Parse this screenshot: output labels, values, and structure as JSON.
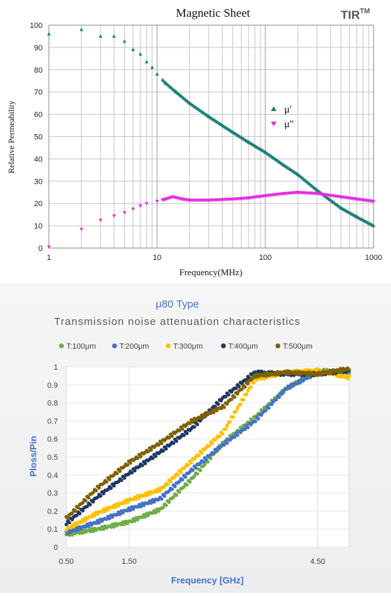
{
  "chart_data": [
    {
      "type": "scatter",
      "title": "Magnetic Sheet",
      "brand": "TIR",
      "brand_sup": "TM",
      "xlabel": "Frequency(MHz)",
      "ylabel": "Relative Permeability",
      "xscale": "log",
      "xlim": [
        1,
        1000
      ],
      "ylim": [
        0,
        100
      ],
      "x_ticks": [
        "1",
        "10",
        "100",
        "1000"
      ],
      "y_ticks": [
        "0",
        "10",
        "20",
        "30",
        "40",
        "50",
        "60",
        "70",
        "80",
        "90",
        "100"
      ],
      "grid": true,
      "legend_position": "right",
      "colors": {
        "mu_prime": "#1b7f79",
        "mu_dprime": "#e52ee5"
      },
      "series": [
        {
          "name": "μ'",
          "marker": "triangle-up",
          "x": [
            1,
            2,
            3,
            4,
            5,
            6,
            7,
            8,
            9,
            10,
            12,
            15,
            20,
            30,
            50,
            70,
            100,
            150,
            200,
            300,
            500,
            700,
            1000
          ],
          "y": [
            96,
            98,
            95,
            95,
            92.7,
            89,
            87,
            83.5,
            81,
            78,
            74,
            70,
            65,
            59,
            52,
            47.5,
            43,
            37,
            33,
            26,
            18,
            14,
            10
          ]
        },
        {
          "name": "μ''",
          "marker": "triangle-down",
          "x": [
            1,
            2,
            3,
            4,
            5,
            6,
            7,
            8,
            10,
            12,
            14,
            17,
            20,
            30,
            50,
            70,
            100,
            150,
            200,
            300,
            500,
            700,
            1000
          ],
          "y": [
            0.5,
            8.5,
            12.5,
            14.5,
            16,
            17.5,
            19,
            20,
            21,
            22,
            23,
            22,
            21.5,
            21.5,
            22,
            22.5,
            23.5,
            24.5,
            25,
            24.5,
            23,
            22,
            21
          ]
        }
      ]
    },
    {
      "type": "scatter",
      "title": "μ80 Type",
      "subtitle": "Transmission noise attenuation characteristics",
      "xlabel": "Frequency [GHz]",
      "ylabel": "Ploss/Pin",
      "xlim": [
        0.5,
        5.0
      ],
      "ylim": [
        0,
        1
      ],
      "x_ticks": [
        "0.50",
        "1.50",
        "4.50"
      ],
      "y_ticks": [
        "0",
        "0.1",
        "0.2",
        "0.3",
        "0.4",
        "0.5",
        "0.6",
        "0.7",
        "0.8",
        "0.9",
        "1"
      ],
      "grid": true,
      "legend_position": "top",
      "series": [
        {
          "name": "T:100μm",
          "color": "#70ad47",
          "x": [
            0.5,
            1.0,
            1.5,
            2.0,
            2.5,
            3.0,
            3.5,
            4.0,
            4.5,
            5.0
          ],
          "y": [
            0.07,
            0.1,
            0.14,
            0.21,
            0.38,
            0.58,
            0.72,
            0.88,
            0.98,
            0.97
          ]
        },
        {
          "name": "T:200μm",
          "color": "#4472c4",
          "x": [
            0.5,
            1.0,
            1.5,
            2.0,
            2.5,
            3.0,
            3.5,
            4.0,
            4.5,
            5.0
          ],
          "y": [
            0.08,
            0.14,
            0.21,
            0.27,
            0.43,
            0.57,
            0.7,
            0.88,
            0.97,
            0.98
          ]
        },
        {
          "name": "T:300μm",
          "color": "#ffc000",
          "x": [
            0.5,
            1.0,
            1.5,
            2.0,
            2.5,
            3.0,
            3.5,
            4.0,
            4.5,
            5.0
          ],
          "y": [
            0.1,
            0.19,
            0.26,
            0.32,
            0.48,
            0.64,
            0.93,
            0.97,
            0.98,
            0.94
          ]
        },
        {
          "name": "T:400μm",
          "color": "#1f3864",
          "x": [
            0.5,
            1.0,
            1.5,
            2.0,
            2.5,
            3.0,
            3.5,
            4.0,
            4.5,
            5.0
          ],
          "y": [
            0.13,
            0.28,
            0.41,
            0.53,
            0.66,
            0.83,
            0.97,
            0.96,
            0.96,
            0.98
          ]
        },
        {
          "name": "T:500μm",
          "color": "#7f6000",
          "x": [
            0.5,
            1.0,
            1.5,
            2.0,
            2.5,
            3.0,
            3.5,
            4.0,
            4.5,
            5.0
          ],
          "y": [
            0.16,
            0.33,
            0.47,
            0.58,
            0.7,
            0.78,
            0.95,
            0.97,
            0.96,
            0.99
          ]
        }
      ]
    }
  ]
}
